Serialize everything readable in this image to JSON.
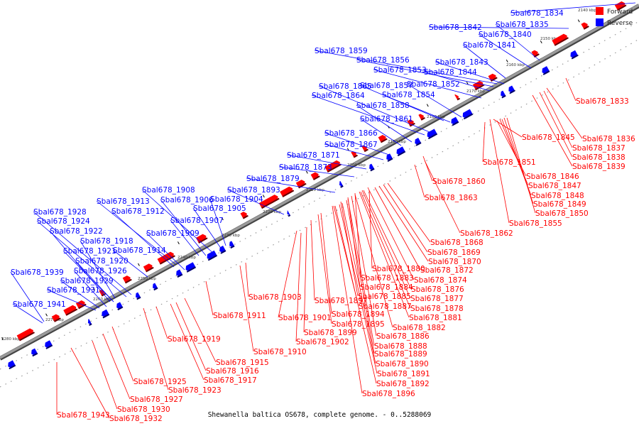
{
  "caption": "Shewanella baltica OS678, complete genome. - 0..5288069",
  "legend": [
    {
      "label": "Forward",
      "color": "#ff0000"
    },
    {
      "label": "Reverse",
      "color": "#0000ff"
    }
  ],
  "colors": {
    "forward": "#ff0000",
    "reverse": "#0000ff",
    "backbone": "#888888"
  },
  "ticks": [
    "2140 kbp",
    "2150 kbp",
    "2160 kbp",
    "2170 kbp",
    "2180 kbp",
    "2190 kbp",
    "2200 kbp",
    "2210 kbp",
    "2220 kbp",
    "2230 kbp",
    "2240 kbp",
    "2250 kbp",
    "2260 kbp",
    "2270 kbp",
    "2280 kbp"
  ],
  "reverse_genes": [
    "Sbal678_1834",
    "Sbal678_1842",
    "Sbal678_1835",
    "Sbal678_1840",
    "Sbal678_1841",
    "Sbal678_1859",
    "Sbal678_1856",
    "Sbal678_1843",
    "Sbal678_1853",
    "Sbal678_1844",
    "Sbal678_1852",
    "Sbal678_1857",
    "Sbal678_1865",
    "Sbal678_1854",
    "Sbal678_1864",
    "Sbal678_1858",
    "Sbal678_1861",
    "Sbal678_1866",
    "Sbal678_1867",
    "Sbal678_1871",
    "Sbal678_1873",
    "Sbal678_1879",
    "Sbal678_1908",
    "Sbal678_1893",
    "Sbal678_1906",
    "Sbal678_1904",
    "Sbal678_1913",
    "Sbal678_1905",
    "Sbal678_1928",
    "Sbal678_1912",
    "Sbal678_1907",
    "Sbal678_1924",
    "Sbal678_1922",
    "Sbal678_1909",
    "Sbal678_1918",
    "Sbal678_1921",
    "Sbal678_1914",
    "Sbal678_1920",
    "Sbal678_1939",
    "Sbal678_1926",
    "Sbal678_1929",
    "Sbal678_1931",
    "Sbal678_1941"
  ],
  "forward_genes": [
    "Sbal678_1833",
    "Sbal678_1836",
    "Sbal678_1845",
    "Sbal678_1837",
    "Sbal678_1838",
    "Sbal678_1839",
    "Sbal678_1851",
    "Sbal678_1846",
    "Sbal678_1860",
    "Sbal678_1847",
    "Sbal678_1848",
    "Sbal678_1863",
    "Sbal678_1849",
    "Sbal678_1850",
    "Sbal678_1855",
    "Sbal678_1862",
    "Sbal678_1868",
    "Sbal678_1869",
    "Sbal678_1870",
    "Sbal678_1880",
    "Sbal678_1872",
    "Sbal678_1883",
    "Sbal678_1874",
    "Sbal678_1884",
    "Sbal678_1876",
    "Sbal678_1903",
    "Sbal678_1885",
    "Sbal678_1877",
    "Sbal678_1897",
    "Sbal678_1887",
    "Sbal678_1878",
    "Sbal678_1894",
    "Sbal678_1881",
    "Sbal678_1911",
    "Sbal678_1901",
    "Sbal678_1895",
    "Sbal678_1882",
    "Sbal678_1899",
    "Sbal678_1886",
    "Sbal678_1919",
    "Sbal678_1902",
    "Sbal678_1888",
    "Sbal678_1910",
    "Sbal678_1889",
    "Sbal678_1915",
    "Sbal678_1890",
    "Sbal678_1916",
    "Sbal678_1917",
    "Sbal678_1891",
    "Sbal678_1925",
    "Sbal678_1892",
    "Sbal678_1923",
    "Sbal678_1896",
    "Sbal678_1927",
    "Sbal678_1930",
    "Sbal678_1943",
    "Sbal678_1932"
  ]
}
